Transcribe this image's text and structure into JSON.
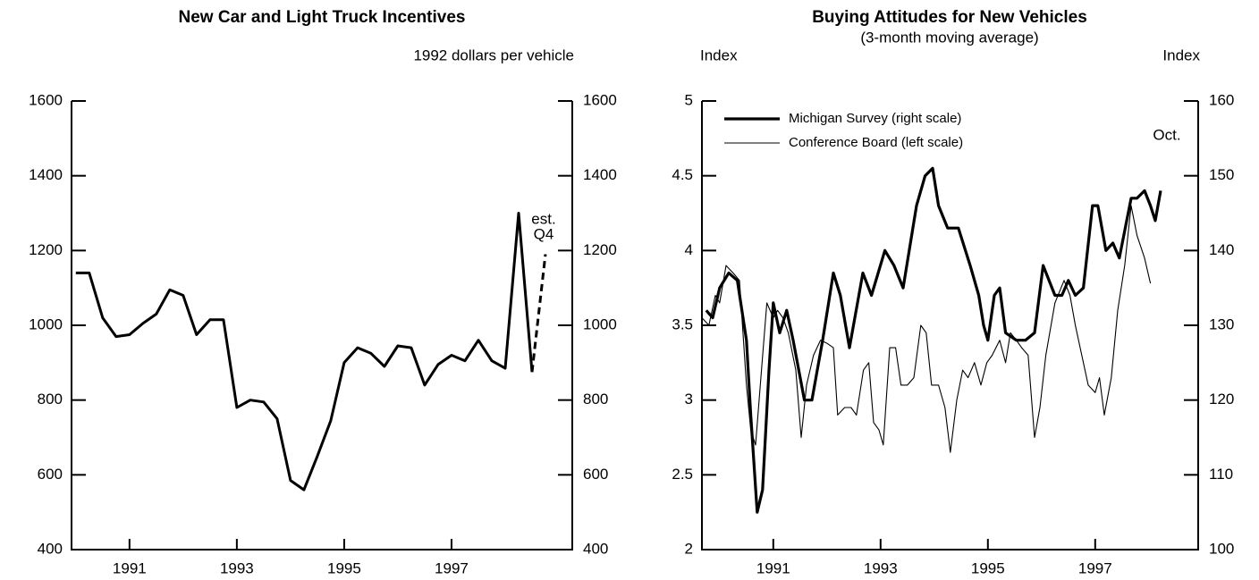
{
  "chart_data": [
    {
      "type": "line",
      "title": "New Car and Light Truck Incentives",
      "y_label": "1992 dollars per vehicle",
      "annotations": [
        "est.",
        "Q4"
      ],
      "xlim": [
        1989.92,
        1999.25
      ],
      "xticks": [
        1991,
        1993,
        1995,
        1997
      ],
      "ylim": [
        400,
        1600
      ],
      "yticks": [
        400,
        600,
        800,
        1000,
        1200,
        1400,
        1600
      ],
      "y2lim": [
        400,
        1600
      ],
      "y2ticks": [
        400,
        600,
        800,
        1000,
        1200,
        1400,
        1600
      ],
      "series": [
        {
          "color": "#000",
          "width": 3,
          "dash": false,
          "x": [
            1990.0,
            1990.25,
            1990.5,
            1990.75,
            1991.0,
            1991.25,
            1991.5,
            1991.75,
            1992.0,
            1992.25,
            1992.5,
            1992.75,
            1993.0,
            1993.25,
            1993.5,
            1993.75,
            1994.0,
            1994.25,
            1994.5,
            1994.75,
            1995.0,
            1995.25,
            1995.5,
            1995.75,
            1996.0,
            1996.25,
            1996.5,
            1996.75,
            1997.0,
            1997.25,
            1997.5,
            1997.75,
            1998.0,
            1998.25,
            1998.5
          ],
          "values": [
            1140,
            1140,
            1020,
            970,
            975,
            1005,
            1030,
            1095,
            1080,
            975,
            1015,
            1015,
            780,
            800,
            795,
            750,
            585,
            560,
            650,
            745,
            900,
            940,
            925,
            890,
            945,
            940,
            840,
            895,
            920,
            905,
            960,
            905,
            885,
            1300,
            875
          ]
        },
        {
          "color": "#000",
          "width": 3,
          "dash": true,
          "x": [
            1998.5,
            1998.75
          ],
          "values": [
            875,
            1190
          ]
        }
      ]
    },
    {
      "type": "line",
      "title": "Buying Attitudes for New Vehicles",
      "subtitle": "(3-month moving average)",
      "y_label": "Index",
      "y2_label": "Index",
      "annotations": [
        "Oct."
      ],
      "legend": "upper left",
      "xlim": [
        1989.67,
        1998.92
      ],
      "xticks": [
        1991,
        1993,
        1995,
        1997
      ],
      "ylim": [
        2,
        5
      ],
      "yticks": [
        2,
        2.5,
        3,
        3.5,
        4,
        4.5,
        5
      ],
      "y2lim": [
        100,
        160
      ],
      "y2ticks": [
        100,
        110,
        120,
        130,
        140,
        150,
        160
      ],
      "series": [
        {
          "name": "Michigan Survey (right scale)",
          "color": "#000",
          "width": 3.2,
          "axis": "y2",
          "x": [
            1989.75,
            1989.87,
            1990.0,
            1990.17,
            1990.33,
            1990.5,
            1990.58,
            1990.7,
            1990.8,
            1990.92,
            1991.0,
            1991.12,
            1991.25,
            1991.37,
            1991.58,
            1991.72,
            1991.92,
            1992.12,
            1992.25,
            1992.42,
            1992.67,
            1992.83,
            1993.08,
            1993.25,
            1993.42,
            1993.67,
            1993.83,
            1993.97,
            1994.08,
            1994.25,
            1994.45,
            1994.67,
            1994.83,
            1994.92,
            1995.0,
            1995.12,
            1995.22,
            1995.33,
            1995.53,
            1995.7,
            1995.87,
            1996.03,
            1996.25,
            1996.38,
            1996.5,
            1996.63,
            1996.78,
            1996.95,
            1997.05,
            1997.2,
            1997.33,
            1997.45,
            1997.67,
            1997.78,
            1997.92,
            1998.03,
            1998.12,
            1998.22
          ],
          "values": [
            132,
            131,
            135,
            137,
            136,
            128,
            118,
            105,
            108,
            124,
            133,
            129,
            132,
            128,
            120,
            120,
            128,
            137,
            134,
            127,
            137,
            134,
            140,
            138,
            135,
            146,
            150,
            151,
            146,
            143,
            143,
            138,
            134,
            130,
            128,
            134,
            135,
            129,
            128,
            128,
            129,
            138,
            134,
            134,
            136,
            134,
            135,
            146,
            146,
            140,
            141,
            139,
            147,
            147,
            148,
            146,
            144,
            148
          ]
        },
        {
          "name": "Conference Board (left scale)",
          "color": "#000",
          "width": 1.1,
          "x": [
            1989.67,
            1989.8,
            1989.92,
            1990.0,
            1990.12,
            1990.25,
            1990.37,
            1990.5,
            1990.58,
            1990.67,
            1990.78,
            1990.88,
            1991.0,
            1991.08,
            1991.18,
            1991.28,
            1991.42,
            1991.52,
            1991.62,
            1991.75,
            1991.88,
            1992.0,
            1992.12,
            1992.2,
            1992.33,
            1992.45,
            1992.55,
            1992.68,
            1992.78,
            1992.87,
            1992.97,
            1993.05,
            1993.17,
            1993.28,
            1993.38,
            1993.5,
            1993.62,
            1993.75,
            1993.85,
            1993.95,
            1994.08,
            1994.2,
            1994.3,
            1994.42,
            1994.53,
            1994.63,
            1994.75,
            1994.87,
            1994.98,
            1995.08,
            1995.22,
            1995.33,
            1995.42,
            1995.53,
            1995.63,
            1995.75,
            1995.87,
            1995.97,
            1996.08,
            1996.25,
            1996.42,
            1996.53,
            1996.63,
            1996.75,
            1996.87,
            1997.0,
            1997.08,
            1997.17,
            1997.3,
            1997.42,
            1997.55,
            1997.67,
            1997.78,
            1997.92,
            1998.03
          ],
          "values": [
            3.55,
            3.5,
            3.7,
            3.65,
            3.9,
            3.85,
            3.8,
            3.1,
            2.8,
            2.7,
            3.2,
            3.65,
            3.55,
            3.6,
            3.55,
            3.45,
            3.2,
            2.75,
            3.1,
            3.3,
            3.4,
            3.38,
            3.35,
            2.9,
            2.95,
            2.95,
            2.9,
            3.2,
            3.25,
            2.85,
            2.8,
            2.7,
            3.35,
            3.35,
            3.1,
            3.1,
            3.15,
            3.5,
            3.45,
            3.1,
            3.1,
            2.95,
            2.65,
            3.0,
            3.2,
            3.15,
            3.25,
            3.1,
            3.25,
            3.3,
            3.4,
            3.25,
            3.45,
            3.4,
            3.35,
            3.3,
            2.75,
            2.95,
            3.3,
            3.65,
            3.8,
            3.7,
            3.5,
            3.3,
            3.1,
            3.05,
            3.15,
            2.9,
            3.15,
            3.6,
            3.9,
            4.3,
            4.1,
            3.95,
            3.78
          ]
        }
      ]
    }
  ]
}
